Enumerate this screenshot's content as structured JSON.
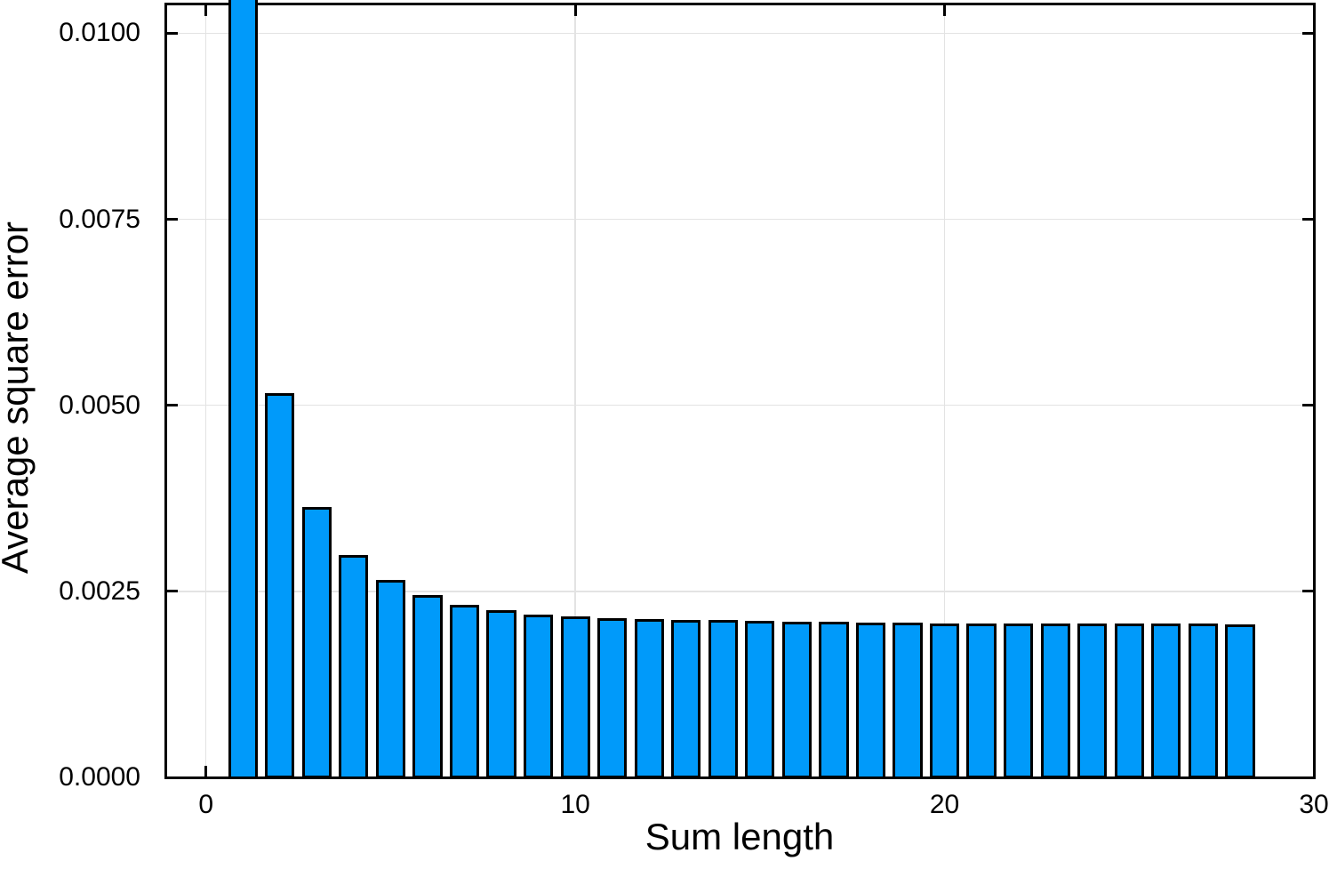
{
  "page": {
    "background": "#FFFFFF"
  },
  "chart_data": {
    "type": "bar",
    "title": "",
    "xlabel": "Sum length",
    "ylabel": "Average square error",
    "x": [
      1,
      2,
      3,
      4,
      5,
      6,
      7,
      8,
      9,
      10,
      11,
      12,
      13,
      14,
      15,
      16,
      17,
      18,
      19,
      20,
      21,
      22,
      23,
      24,
      25,
      26,
      27,
      28
    ],
    "values": [
      0.0105,
      0.00517,
      0.00363,
      0.00299,
      0.00265,
      0.00245,
      0.00232,
      0.00225,
      0.00219,
      0.00216,
      0.00214,
      0.00213,
      0.00211,
      0.00211,
      0.0021,
      0.00209,
      0.00209,
      0.00208,
      0.00208,
      0.00207,
      0.00207,
      0.00207,
      0.00207,
      0.00207,
      0.00207,
      0.00207,
      0.00207,
      0.00206
    ],
    "first_bar_clipped_at_top": true,
    "bar_width_units": 0.8,
    "xlim": [
      -1.1,
      30
    ],
    "ylim": [
      0,
      0.0104
    ],
    "xticks": {
      "values": [
        0,
        10,
        20,
        30
      ],
      "labels": [
        "0",
        "10",
        "20",
        "30"
      ]
    },
    "yticks": {
      "values": [
        0,
        0.0025,
        0.005,
        0.0075,
        0.01
      ],
      "labels": [
        "0.0000",
        "0.0025",
        "0.0050",
        "0.0075",
        "0.0100"
      ]
    },
    "grid": true,
    "legend": "none",
    "frame_style": "box-with-mirrored-inward-ticks",
    "colors": {
      "bar_fill": "#009AFA",
      "bar_stroke": "#000000",
      "grid": "#E3E3E3",
      "frame": "#000000",
      "text": "#000000",
      "background": "#FFFFFF"
    }
  }
}
